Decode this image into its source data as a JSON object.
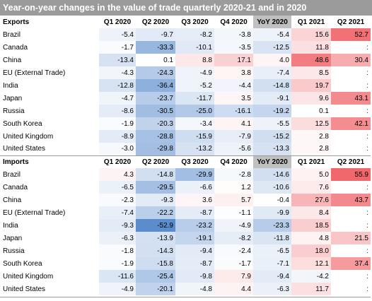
{
  "title": "Year-on-year changes  in the value of trade quarterly 2020-21 and in 2020",
  "chart_data": {
    "type": "table",
    "title": "Year-on-year changes  in the value of trade quarterly 2020-21 and in 2020",
    "columns": [
      "Q1 2020",
      "Q2 2020",
      "Q3 2020",
      "Q4 2020",
      "YoY 2020",
      "Q1 2021",
      "Q2 2021"
    ],
    "sections": [
      {
        "name": "Exports",
        "rows": [
          {
            "name": "Brazil",
            "values": [
              "-5.4",
              "-9.7",
              "-8.2",
              "-3.8",
              "-5.4",
              "15.6",
              "52.7"
            ]
          },
          {
            "name": "Canada",
            "values": [
              "-1.7",
              "-33.3",
              "-10.1",
              "-3.5",
              "-12.5",
              "11.8",
              ":"
            ]
          },
          {
            "name": "China",
            "values": [
              "-13.4",
              "0.1",
              "8.8",
              "17.1",
              "4.0",
              "48.6",
              "30.4"
            ]
          },
          {
            "name": "EU (External Trade)",
            "values": [
              "-4.3",
              "-24.3",
              "-4.9",
              "3.8",
              "-7.4",
              "8.5",
              ":"
            ]
          },
          {
            "name": "India",
            "values": [
              "-12.8",
              "-36.4",
              "-5.2",
              "-4.4",
              "-14.8",
              "19.7",
              ":"
            ]
          },
          {
            "name": "Japan",
            "values": [
              "-4.7",
              "-23.7",
              "-11.7",
              "3.5",
              "-9.1",
              "9.6",
              "43.1"
            ]
          },
          {
            "name": "Russia",
            "values": [
              "-8.6",
              "-30.5",
              "-25.0",
              "-16.1",
              "-19.2",
              "0.1",
              ":"
            ]
          },
          {
            "name": "South Korea",
            "values": [
              "-1.9",
              "-20.3",
              "-3.4",
              "4.1",
              "-5.5",
              "12.5",
              "42.1"
            ]
          },
          {
            "name": "United Kingdom",
            "values": [
              "-8.9",
              "-28.8",
              "-15.9",
              "-7.9",
              "-15.2",
              "2.8",
              ":"
            ]
          },
          {
            "name": "United States",
            "values": [
              "-3.0",
              "-29.8",
              "-13.2",
              "-5.6",
              "-13.3",
              "2.8",
              ":"
            ]
          }
        ]
      },
      {
        "name": "Imports",
        "rows": [
          {
            "name": "Brazil",
            "values": [
              "4.3",
              "-14.8",
              "-29.9",
              "-2.8",
              "-14.6",
              "5.0",
              "55.9"
            ]
          },
          {
            "name": "Canada",
            "values": [
              "-6.5",
              "-29.5",
              "-6.6",
              "1.2",
              "-10.6",
              "7.6",
              ":"
            ]
          },
          {
            "name": "China",
            "values": [
              "-2.3",
              "-9.3",
              "3.6",
              "5.7",
              "-0.4",
              "27.6",
              "43.7"
            ]
          },
          {
            "name": "EU (External Trade)",
            "values": [
              "-7.4",
              "-22.2",
              "-8.7",
              "-1.1",
              "-9.9",
              "8.4",
              ":"
            ]
          },
          {
            "name": "India",
            "values": [
              "-9.3",
              "-52.9",
              "-23.2",
              "-4.9",
              "-23.3",
              "18.5",
              ":"
            ]
          },
          {
            "name": "Japan",
            "values": [
              "-6.3",
              "-13.9",
              "-19.1",
              "-8.2",
              "-11.8",
              "4.8",
              "21.5"
            ]
          },
          {
            "name": "Russia",
            "values": [
              "-1.8",
              "-14.3",
              "-9.4",
              "-2.4",
              "-6.5",
              "18.0",
              ":"
            ]
          },
          {
            "name": "South Korea",
            "values": [
              "-1.9",
              "-15.8",
              "-8.7",
              "-1.7",
              "-7.1",
              "12.1",
              "37.4"
            ]
          },
          {
            "name": "United Kingdom",
            "values": [
              "-11.6",
              "-25.4",
              "-9.8",
              "7.9",
              "-9.4",
              "-4.2",
              ":"
            ]
          },
          {
            "name": "United States",
            "values": [
              "-4.9",
              "-20.1",
              "-4.8",
              "4.4",
              "-6.3",
              "11.7",
              ":"
            ]
          }
        ]
      }
    ],
    "colors": {
      "negative_strong": "#5b8ccc",
      "positive_strong": "#f0686c",
      "neutral": "#ffffff",
      "header_band": "#9b9b9b",
      "yoy_header": "#c0c0c0"
    }
  }
}
